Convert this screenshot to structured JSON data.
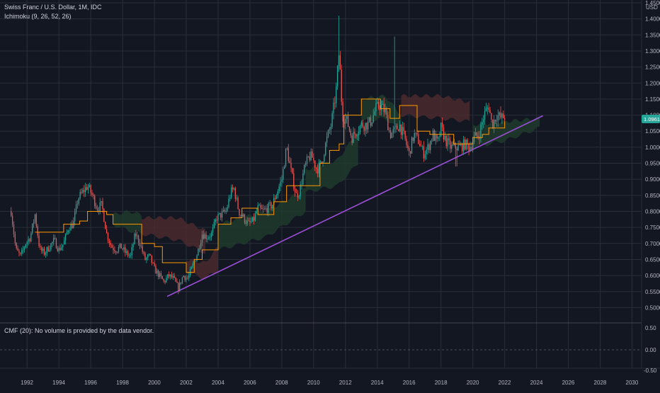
{
  "header": {
    "symbol_title": "Swiss Franc / U.S. Dollar, 1M, IDC",
    "indicator_label": "Ichimoku (9, 26, 52, 26)",
    "currency": "USD"
  },
  "lower_pane": {
    "cmf_message": "CMF (20): No volume is provided by the data vendor.",
    "y_ticks": [
      "0.50",
      "0.00",
      "-0.50"
    ]
  },
  "colors": {
    "background": "#131722",
    "grid": "#2a2e39",
    "up_candle": "#26a69a",
    "down_candle": "#ef5350",
    "base_line": "#ff9800",
    "trend_line": "#9c4fd8",
    "cloud_bull": "#1e3a2c",
    "cloud_bear": "#4a2a2e",
    "price_badge": "#26a69a"
  },
  "chart_data": {
    "type": "candlestick",
    "title": "Swiss Franc / U.S. Dollar, 1M, IDC",
    "ylabel": "USD",
    "ylim": [
      0.47,
      1.45
    ],
    "xlim": [
      1990.3,
      2030.6
    ],
    "y_ticks": [
      "0.5000",
      "0.5500",
      "0.6000",
      "0.6500",
      "0.7000",
      "0.7500",
      "0.8000",
      "0.8500",
      "0.9000",
      "0.9500",
      "1.0000",
      "1.0500",
      "1.1000",
      "1.1500",
      "1.2000",
      "1.2500",
      "1.3000",
      "1.3500",
      "1.4000",
      "1.4500"
    ],
    "x_ticks": [
      "1992",
      "1994",
      "1996",
      "1998",
      "2000",
      "2002",
      "2004",
      "2006",
      "2008",
      "2010",
      "2012",
      "2014",
      "2016",
      "2018",
      "2020",
      "2022",
      "2024",
      "2026",
      "2028",
      "2030"
    ],
    "last_price": "1.0961",
    "grid": true,
    "price_path": [
      [
        1991.0,
        0.8
      ],
      [
        1991.3,
        0.68
      ],
      [
        1991.6,
        0.66
      ],
      [
        1991.9,
        0.7
      ],
      [
        1992.2,
        0.72
      ],
      [
        1992.5,
        0.79
      ],
      [
        1992.8,
        0.68
      ],
      [
        1993.1,
        0.67
      ],
      [
        1993.4,
        0.69
      ],
      [
        1993.7,
        0.71
      ],
      [
        1994.0,
        0.68
      ],
      [
        1994.3,
        0.7
      ],
      [
        1994.6,
        0.75
      ],
      [
        1994.9,
        0.76
      ],
      [
        1995.2,
        0.84
      ],
      [
        1995.5,
        0.86
      ],
      [
        1995.8,
        0.88
      ],
      [
        1996.1,
        0.85
      ],
      [
        1996.4,
        0.81
      ],
      [
        1996.7,
        0.82
      ],
      [
        1997.0,
        0.73
      ],
      [
        1997.3,
        0.69
      ],
      [
        1997.6,
        0.68
      ],
      [
        1997.9,
        0.69
      ],
      [
        1998.2,
        0.67
      ],
      [
        1998.5,
        0.66
      ],
      [
        1998.8,
        0.73
      ],
      [
        1999.1,
        0.7
      ],
      [
        1999.4,
        0.65
      ],
      [
        1999.7,
        0.66
      ],
      [
        2000.0,
        0.62
      ],
      [
        2000.3,
        0.6
      ],
      [
        2000.6,
        0.58
      ],
      [
        2000.9,
        0.6
      ],
      [
        2001.2,
        0.59
      ],
      [
        2001.5,
        0.56
      ],
      [
        2001.8,
        0.6
      ],
      [
        2002.1,
        0.59
      ],
      [
        2002.4,
        0.63
      ],
      [
        2002.7,
        0.67
      ],
      [
        2003.0,
        0.73
      ],
      [
        2003.3,
        0.72
      ],
      [
        2003.6,
        0.73
      ],
      [
        2003.9,
        0.78
      ],
      [
        2004.2,
        0.79
      ],
      [
        2004.5,
        0.8
      ],
      [
        2004.8,
        0.86
      ],
      [
        2005.0,
        0.87
      ],
      [
        2005.3,
        0.8
      ],
      [
        2005.6,
        0.78
      ],
      [
        2005.9,
        0.76
      ],
      [
        2006.2,
        0.77
      ],
      [
        2006.5,
        0.81
      ],
      [
        2006.8,
        0.8
      ],
      [
        2007.1,
        0.81
      ],
      [
        2007.4,
        0.82
      ],
      [
        2007.7,
        0.86
      ],
      [
        2008.0,
        0.9
      ],
      [
        2008.3,
        1.0
      ],
      [
        2008.6,
        0.92
      ],
      [
        2008.9,
        0.85
      ],
      [
        2009.1,
        0.86
      ],
      [
        2009.4,
        0.93
      ],
      [
        2009.7,
        0.97
      ],
      [
        2009.9,
        0.97
      ],
      [
        2010.2,
        0.93
      ],
      [
        2010.5,
        0.95
      ],
      [
        2010.8,
        1.02
      ],
      [
        2011.1,
        1.07
      ],
      [
        2011.4,
        1.17
      ],
      [
        2011.6,
        1.3
      ],
      [
        2011.8,
        1.1
      ],
      [
        2012.1,
        1.08
      ],
      [
        2012.4,
        1.03
      ],
      [
        2012.7,
        1.05
      ],
      [
        2013.0,
        1.07
      ],
      [
        2013.3,
        1.07
      ],
      [
        2013.6,
        1.08
      ],
      [
        2013.9,
        1.12
      ],
      [
        2014.2,
        1.13
      ],
      [
        2014.5,
        1.11
      ],
      [
        2014.8,
        1.04
      ],
      [
        2015.1,
        1.05
      ],
      [
        2015.4,
        1.07
      ],
      [
        2015.7,
        1.03
      ],
      [
        2016.0,
        0.98
      ],
      [
        2016.3,
        1.04
      ],
      [
        2016.6,
        1.02
      ],
      [
        2016.9,
        0.98
      ],
      [
        2017.2,
        1.0
      ],
      [
        2017.5,
        1.04
      ],
      [
        2017.8,
        1.01
      ],
      [
        2018.0,
        1.06
      ],
      [
        2018.3,
        1.02
      ],
      [
        2018.6,
        1.0
      ],
      [
        2018.9,
        1.0
      ],
      [
        2019.2,
        1.0
      ],
      [
        2019.5,
        1.01
      ],
      [
        2019.8,
        1.0
      ],
      [
        2020.1,
        1.03
      ],
      [
        2020.4,
        1.04
      ],
      [
        2020.7,
        1.1
      ],
      [
        2021.0,
        1.13
      ],
      [
        2021.2,
        1.07
      ],
      [
        2021.5,
        1.1
      ],
      [
        2021.8,
        1.09
      ],
      [
        2022.0,
        1.0961
      ]
    ],
    "base_line_path": [
      [
        1992.5,
        0.735
      ],
      [
        1994.0,
        0.735
      ],
      [
        1994.3,
        0.76
      ],
      [
        1995.3,
        0.77
      ],
      [
        1995.8,
        0.8
      ],
      [
        1997.0,
        0.79
      ],
      [
        1997.4,
        0.76
      ],
      [
        1998.8,
        0.76
      ],
      [
        1999.2,
        0.7
      ],
      [
        2000.0,
        0.69
      ],
      [
        2000.5,
        0.64
      ],
      [
        2001.5,
        0.64
      ],
      [
        2002.0,
        0.61
      ],
      [
        2002.5,
        0.65
      ],
      [
        2003.0,
        0.68
      ],
      [
        2004.0,
        0.76
      ],
      [
        2004.8,
        0.78
      ],
      [
        2005.5,
        0.81
      ],
      [
        2006.5,
        0.79
      ],
      [
        2007.5,
        0.83
      ],
      [
        2008.3,
        0.88
      ],
      [
        2009.0,
        0.88
      ],
      [
        2009.6,
        0.88
      ],
      [
        2010.4,
        0.95
      ],
      [
        2011.0,
        0.99
      ],
      [
        2011.6,
        1.01
      ],
      [
        2011.9,
        1.1
      ],
      [
        2012.8,
        1.1
      ],
      [
        2013.0,
        1.15
      ],
      [
        2013.7,
        1.15
      ],
      [
        2014.2,
        1.12
      ],
      [
        2014.8,
        1.09
      ],
      [
        2015.2,
        1.09
      ],
      [
        2015.4,
        1.13
      ],
      [
        2016.0,
        1.13
      ],
      [
        2016.5,
        1.05
      ],
      [
        2017.3,
        1.04
      ],
      [
        2018.2,
        1.04
      ],
      [
        2018.8,
        1.01
      ],
      [
        2019.5,
        1.01
      ],
      [
        2020.0,
        1.03
      ],
      [
        2020.6,
        1.04
      ],
      [
        2021.0,
        1.06
      ],
      [
        2022.0,
        1.08
      ]
    ],
    "trend_line": [
      [
        2000.8,
        0.535
      ],
      [
        2024.4,
        1.098
      ]
    ],
    "clouds": [
      {
        "kind": "bull",
        "upper": [
          [
            1997.4,
            0.79
          ],
          [
            1998.4,
            0.8
          ],
          [
            1999.2,
            0.79
          ]
        ],
        "lower": [
          [
            1997.4,
            0.76
          ],
          [
            1998.4,
            0.74
          ],
          [
            1999.2,
            0.73
          ]
        ]
      },
      {
        "kind": "bear",
        "upper": [
          [
            1999.2,
            0.78
          ],
          [
            2001.5,
            0.78
          ],
          [
            2003.2,
            0.74
          ]
        ],
        "lower": [
          [
            1999.2,
            0.73
          ],
          [
            2001.5,
            0.71
          ],
          [
            2003.2,
            0.67
          ]
        ]
      },
      {
        "kind": "bear",
        "upper": [
          [
            2002.0,
            0.65
          ],
          [
            2003.2,
            0.64
          ],
          [
            2004.0,
            0.69
          ]
        ],
        "lower": [
          [
            2002.0,
            0.61
          ],
          [
            2003.2,
            0.59
          ],
          [
            2004.0,
            0.62
          ]
        ]
      },
      {
        "kind": "bull",
        "upper": [
          [
            2004.0,
            0.76
          ],
          [
            2007.0,
            0.8
          ],
          [
            2009.5,
            0.87
          ]
        ],
        "lower": [
          [
            2004.0,
            0.68
          ],
          [
            2007.0,
            0.72
          ],
          [
            2009.5,
            0.8
          ]
        ]
      },
      {
        "kind": "bull",
        "upper": [
          [
            2009.5,
            0.93
          ],
          [
            2011.5,
            0.96
          ],
          [
            2012.8,
            1.05
          ]
        ],
        "lower": [
          [
            2009.5,
            0.86
          ],
          [
            2011.5,
            0.88
          ],
          [
            2012.8,
            0.95
          ]
        ]
      },
      {
        "kind": "bull",
        "upper": [
          [
            2013.0,
            1.15
          ],
          [
            2014.5,
            1.16
          ],
          [
            2015.5,
            1.1
          ]
        ],
        "lower": [
          [
            2013.0,
            1.08
          ],
          [
            2014.5,
            1.09
          ],
          [
            2015.5,
            1.05
          ]
        ]
      },
      {
        "kind": "bear",
        "upper": [
          [
            2015.5,
            1.16
          ],
          [
            2018.0,
            1.16
          ],
          [
            2019.8,
            1.14
          ]
        ],
        "lower": [
          [
            2015.5,
            1.1
          ],
          [
            2018.0,
            1.09
          ],
          [
            2019.8,
            1.08
          ]
        ]
      },
      {
        "kind": "bull",
        "upper": [
          [
            2020.0,
            1.07
          ],
          [
            2022.0,
            1.08
          ],
          [
            2024.2,
            1.09
          ]
        ],
        "lower": [
          [
            2020.0,
            1.0
          ],
          [
            2022.0,
            1.02
          ],
          [
            2024.2,
            1.06
          ]
        ]
      }
    ]
  }
}
